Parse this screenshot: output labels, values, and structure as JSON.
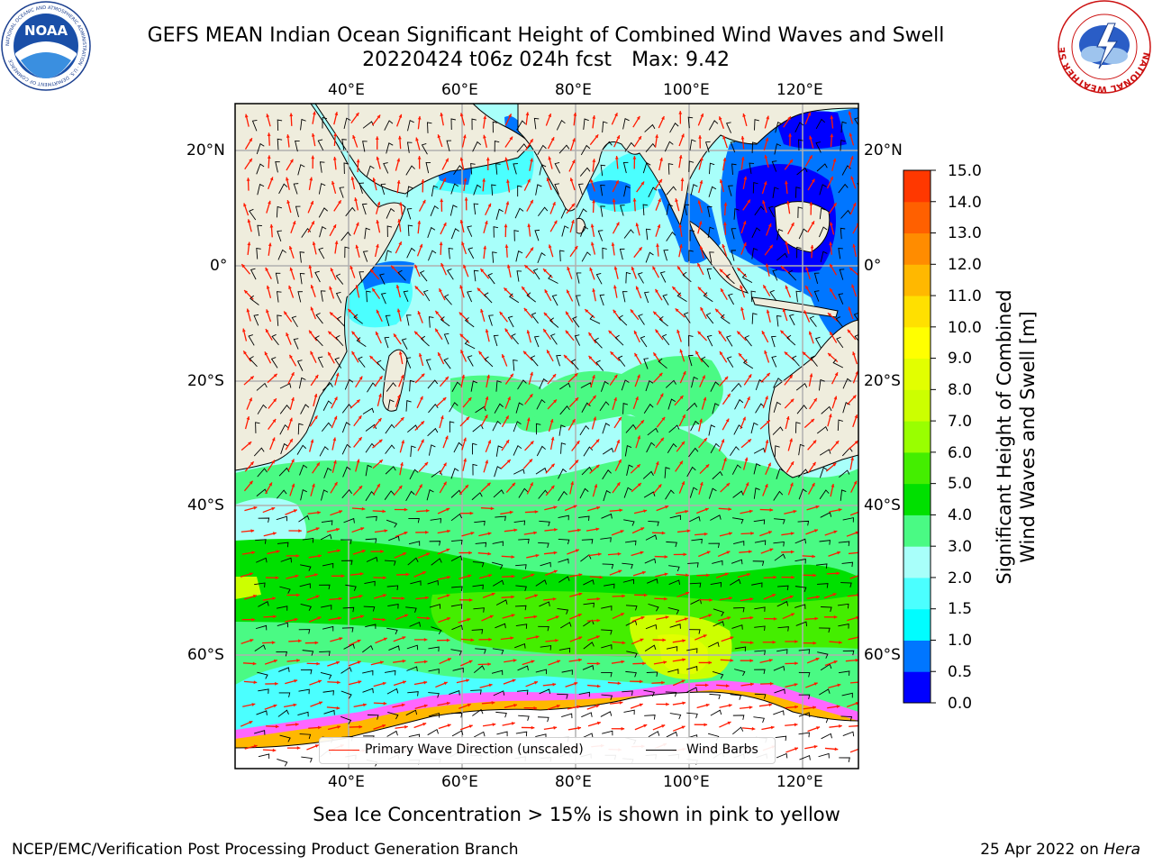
{
  "title_line1": "GEFS MEAN Indian Ocean Significant Height of Combined Wind Waves and Swell",
  "title_run": "20220424 t06z 024h fcst",
  "title_max": "Max: 9.42",
  "logos": {
    "noaa": {
      "text": "NOAA",
      "ring_text": "NATIONAL OCEANIC AND ATMOSPHERIC ADMINISTRATION · U.S. DEPARTMENT OF COMMERCE",
      "icon": "noaa-logo"
    },
    "nws": {
      "ring_text": "NATIONAL WEATHER SERVICE",
      "icon": "nws-logo"
    }
  },
  "map": {
    "lon_labels_top": [
      "40°E",
      "60°E",
      "80°E",
      "100°E",
      "120°E"
    ],
    "lon_labels_bottom": [
      "40°E",
      "60°E",
      "80°E",
      "100°E",
      "120°E"
    ],
    "lat_labels_left": [
      "20°N",
      "0°",
      "20°S",
      "40°S",
      "60°S"
    ],
    "lat_labels_right": [
      "20°N",
      "0°",
      "20°S",
      "40°S",
      "60°S"
    ],
    "lon_range": [
      20,
      130
    ],
    "lat_range": [
      -70,
      27
    ],
    "colors": {
      "land": "#efeddd",
      "ocean_default": "#a8fffa",
      "wave_dir": "#ff1a00",
      "wind_barb": "#000000",
      "grid": "#b0b0b0"
    }
  },
  "legend": {
    "primary_wave_label": "Primary Wave Direction (unscaled)",
    "wind_barb_label": "Wind Barbs",
    "primary_wave_color": "#ff1a00",
    "wind_barb_color": "#000000"
  },
  "colorbar": {
    "title_line1": "Significant Height of Combined",
    "title_line2": "Wind Waves and Swell [m]",
    "ticks": [
      "15.0",
      "14.0",
      "13.0",
      "12.0",
      "11.0",
      "10.0",
      "9.0",
      "8.0",
      "7.0",
      "6.0",
      "5.0",
      "4.0",
      "3.0",
      "2.0",
      "1.5",
      "1.0",
      "0.5",
      "0.0"
    ],
    "colors": [
      "#0000ff",
      "#0076ff",
      "#00fdff",
      "#4bffff",
      "#a8fffa",
      "#4afa84",
      "#00e000",
      "#44ee00",
      "#99ff00",
      "#ccff00",
      "#e2ff00",
      "#ffff00",
      "#ffe000",
      "#ffb800",
      "#ff8c00",
      "#ff6000",
      "#ff3800",
      "#ff0000"
    ]
  },
  "sea_ice_note": "Sea Ice Concentration > 15% is shown in pink to yellow",
  "credit": "NCEP/EMC/Verification Post Processing Product Generation Branch",
  "date_prefix": "25 Apr 2022 on ",
  "date_machine": "Hera"
}
